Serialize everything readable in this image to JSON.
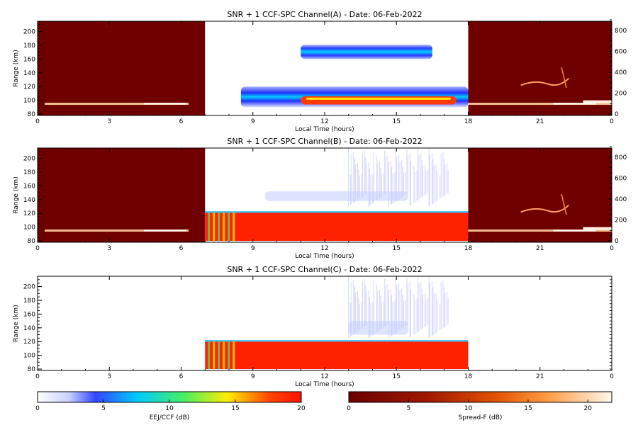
{
  "chart_data": [
    {
      "type": "heatmap",
      "title": "SNR + 1 CCF-SPC Channel(A) - Date: 06-Feb-2022",
      "xlabel": "Local Time (hours)",
      "ylabel": "Range (km)",
      "xlim": [
        0,
        24
      ],
      "ylim": [
        78,
        215
      ],
      "xticks": [
        "0",
        "3",
        "6",
        "9",
        "12",
        "15",
        "18",
        "21",
        "0"
      ],
      "yticks": [
        80,
        100,
        120,
        140,
        160,
        180,
        200
      ],
      "right_axis": {
        "ylim": [
          0,
          900
        ],
        "ticks": [
          0,
          200,
          400,
          600,
          800
        ]
      },
      "spreadf_blocks": [
        {
          "x0": 0,
          "x1": 7
        },
        {
          "x0": 18,
          "x1": 24
        }
      ],
      "bands": [
        {
          "x0": 11,
          "x1": 16.5,
          "y0": 160,
          "y1": 181,
          "level": 9
        },
        {
          "x0": 8.5,
          "x1": 18,
          "y0": 90,
          "y1": 120,
          "level": 12
        },
        {
          "x0": 11,
          "x1": 17.5,
          "y0": 94,
          "y1": 106,
          "level": 18
        }
      ]
    },
    {
      "type": "heatmap",
      "title": "SNR + 1 CCF-SPC Channel(B) - Date: 06-Feb-2022",
      "xlabel": "Local Time (hours)",
      "ylabel": "Range (km)",
      "xlim": [
        0,
        24
      ],
      "ylim": [
        78,
        215
      ],
      "xticks": [
        "0",
        "3",
        "6",
        "9",
        "12",
        "15",
        "18",
        "21",
        "0"
      ],
      "yticks": [
        80,
        100,
        120,
        140,
        160,
        180,
        200
      ],
      "right_axis": {
        "ylim": [
          0,
          900
        ],
        "ticks": [
          0,
          200,
          400,
          600,
          800
        ]
      },
      "spreadf_blocks": [
        {
          "x0": 0,
          "x1": 7
        },
        {
          "x0": 18,
          "x1": 24
        }
      ],
      "bands": [
        {
          "x0": 7,
          "x1": 18,
          "y0": 80,
          "y1": 121,
          "level": 20
        },
        {
          "x0": 9.5,
          "x1": 15.5,
          "y0": 138,
          "y1": 152,
          "level": 4
        }
      ]
    },
    {
      "type": "heatmap",
      "title": "SNR + 1 CCF-SPC Channel(C) - Date: 06-Feb-2022",
      "xlabel": "Local Time (hours)",
      "ylabel": "Range (km)",
      "xlim": [
        0,
        24
      ],
      "ylim": [
        78,
        215
      ],
      "xticks": [
        "0",
        "3",
        "6",
        "9",
        "12",
        "15",
        "18",
        "21",
        "0"
      ],
      "yticks": [
        80,
        100,
        120,
        140,
        160,
        180,
        200
      ],
      "right_axis": null,
      "spreadf_blocks": [],
      "bands": [
        {
          "x0": 7,
          "x1": 18,
          "y0": 80,
          "y1": 120,
          "level": 20
        },
        {
          "x0": 13,
          "x1": 15.5,
          "y0": 130,
          "y1": 150,
          "level": 4
        }
      ]
    }
  ],
  "colorbars": [
    {
      "label": "EEJ/CCF (dB)",
      "ticks": [
        "0",
        "5",
        "10",
        "15",
        "20"
      ],
      "range": [
        0,
        20
      ],
      "palette": "eej"
    },
    {
      "label": "Spread-F (dB)",
      "ticks": [
        "0",
        "5",
        "10",
        "15",
        "20"
      ],
      "range": [
        0,
        22
      ],
      "palette": "spreadf"
    }
  ],
  "colors": {
    "eej": [
      "#ffffff",
      "#9aa8ff",
      "#2233ff",
      "#00ccff",
      "#33ee77",
      "#ffee00",
      "#ff3300",
      "#ff1100"
    ],
    "spreadf": [
      "#6a0000",
      "#8a1000",
      "#c03000",
      "#ff7000",
      "#ffb060",
      "#fff6e8"
    ],
    "spreadf_bg": "#6f0000"
  }
}
